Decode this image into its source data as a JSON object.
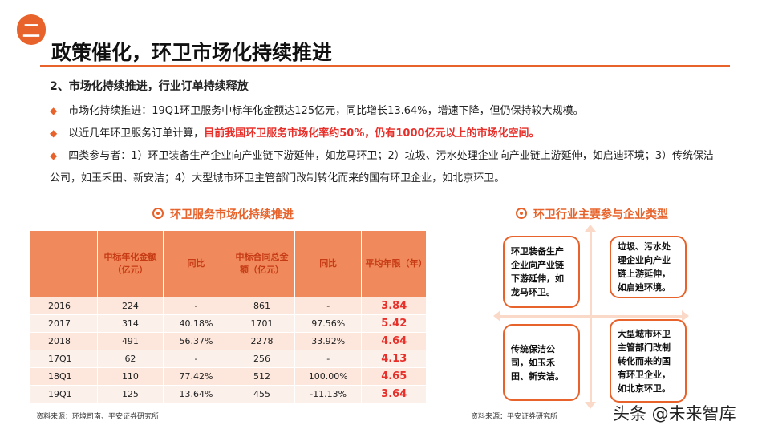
{
  "header": {
    "badge": "二",
    "title": "政策催化，环卫市场化持续推进",
    "colors": {
      "accent": "#e8632b",
      "highlight": "#e8302b"
    }
  },
  "section": {
    "subhead": "2、市场化持续推进，行业订单持续释放",
    "bullets": [
      {
        "text": "市场化持续推进：19Q1环卫服务中标年化金额达125亿元，同比增长13.64%，增速下降，但仍保持较大规模。"
      },
      {
        "text": "以近几年环卫服务订单计算，",
        "highlight": "目前我国环卫服务市场化率约50%，仍有1000亿元以上的市场化空间。"
      },
      {
        "text": "四类参与者：1）环卫装备生产企业向产业链下游延伸，如龙马环卫；2）垃圾、污水处理企业向产业链上游延伸，如启迪环境；3）传统保洁公司，如玉禾田、新安洁；4）大型城市环卫主管部门改制转化而来的国有环卫企业，如北京环卫。"
      }
    ]
  },
  "table_section": {
    "caption": "环卫服务市场化持续推进",
    "headers": [
      "",
      "中标年化金额（亿元）",
      "同比",
      "中标合同总金额（亿元）",
      "同比",
      "平均年限（年）"
    ],
    "rows": [
      [
        "2016",
        "224",
        "-",
        "861",
        "-",
        "3.84"
      ],
      [
        "2017",
        "314",
        "40.18%",
        "1701",
        "97.56%",
        "5.42"
      ],
      [
        "2018",
        "491",
        "56.37%",
        "2278",
        "33.92%",
        "4.64"
      ],
      [
        "17Q1",
        "62",
        "-",
        "256",
        "-",
        "4.13"
      ],
      [
        "18Q1",
        "110",
        "77.42%",
        "512",
        "100.00%",
        "4.65"
      ],
      [
        "19Q1",
        "125",
        "13.64%",
        "455",
        "-11.13%",
        "3.64"
      ]
    ],
    "source": "资料来源：环境司南、平安证券研究所"
  },
  "diagram_section": {
    "caption": "环卫行业主要参与企业类型",
    "quadrants": [
      "环卫装备生产企业向产业链下游延伸，如龙马环卫。",
      "垃圾、污水处理企业向产业链上游延伸，如启迪环境。",
      "传统保洁公司，如玉禾田、新安洁。",
      "大型城市环卫主管部门改制转化而来的国有环卫企业，如北京环卫。"
    ],
    "source": "资料来源：平安证券研究所"
  },
  "watermark": "头条 @未来智库"
}
